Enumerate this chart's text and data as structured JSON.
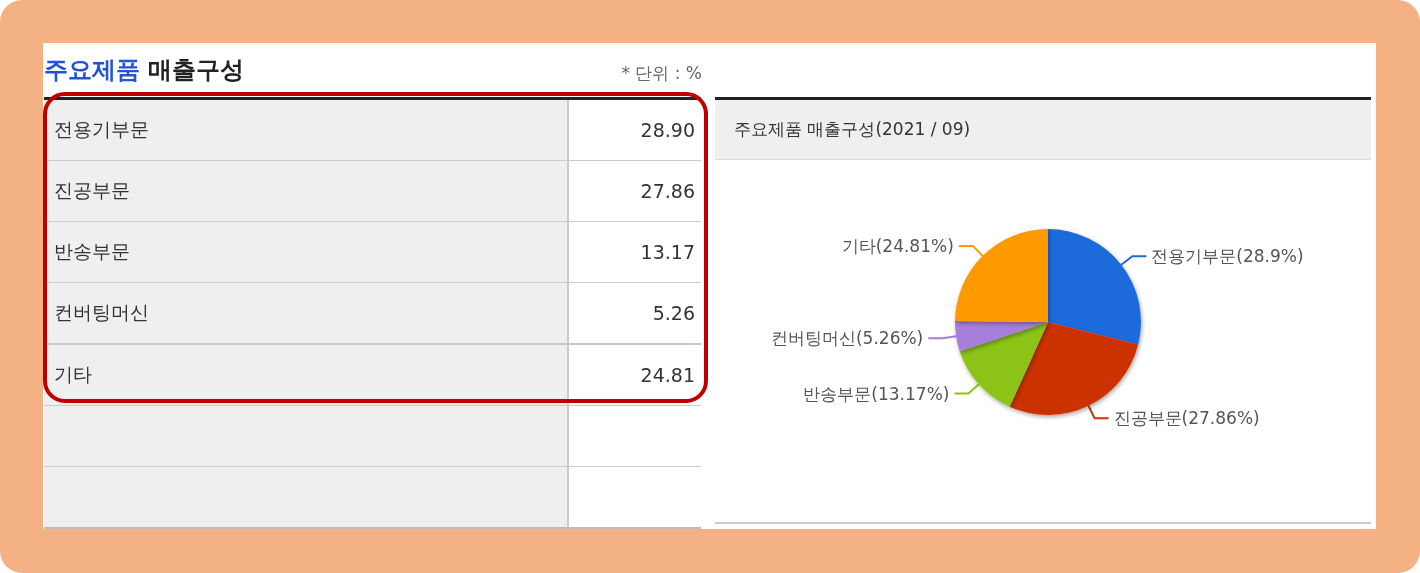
{
  "chart_data": [
    {
      "type": "other",
      "title": "주요제품 매출구성",
      "annotations": [
        "* 단위 : %"
      ],
      "categories": [
        "전용기부문",
        "진공부문",
        "반송부문",
        "컨버팅머신",
        "기타"
      ],
      "value_labels": [
        "28.90",
        "27.86",
        "13.17",
        "5.26",
        "24.81"
      ]
    },
    {
      "type": "pie",
      "title": "주요제품 매출구성(2021 / 09)",
      "categories": [
        "전용기부문",
        "진공부문",
        "반송부문",
        "컨버팅머신",
        "기타"
      ],
      "values": [
        28.9,
        27.86,
        13.17,
        5.26,
        24.81
      ],
      "colors": [
        "#1f6bdc",
        "#cc3300",
        "#8bc314",
        "#a67edb",
        "#ff9900"
      ],
      "value_labels": [
        "(28.9%)",
        "(27.86%)",
        "(13.17%)",
        "(5.26%)",
        "(24.81%)"
      ]
    }
  ]
}
